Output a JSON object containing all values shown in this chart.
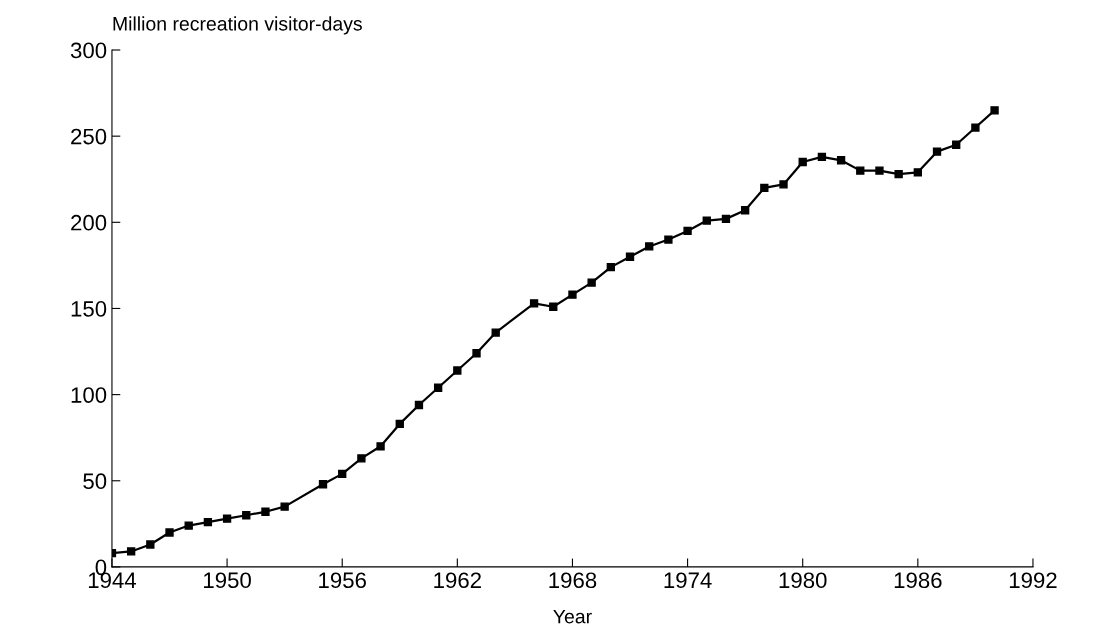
{
  "chart_data": {
    "type": "line",
    "ylabel": "Million recreation visitor-days",
    "xlabel": "Year",
    "x": [
      1944,
      1945,
      1946,
      1947,
      1948,
      1949,
      1950,
      1951,
      1952,
      1953,
      1955,
      1956,
      1957,
      1958,
      1959,
      1960,
      1961,
      1962,
      1963,
      1964,
      1966,
      1967,
      1968,
      1969,
      1970,
      1971,
      1972,
      1973,
      1974,
      1975,
      1976,
      1977,
      1978,
      1979,
      1980,
      1981,
      1982,
      1983,
      1984,
      1985,
      1986,
      1987,
      1988,
      1989,
      1990
    ],
    "series": [
      {
        "color": "#000000",
        "values": [
          8,
          9,
          13,
          20,
          24,
          26,
          28,
          30,
          32,
          35,
          48,
          54,
          63,
          70,
          83,
          94,
          104,
          114,
          124,
          136,
          153,
          151,
          158,
          165,
          174,
          180,
          186,
          190,
          195,
          201,
          202,
          207,
          220,
          222,
          235,
          238,
          236,
          230,
          230,
          228,
          229,
          241,
          245,
          255,
          265
        ]
      }
    ],
    "xlim": [
      1944,
      1992
    ],
    "xticks": [
      1944,
      1950,
      1956,
      1962,
      1968,
      1974,
      1980,
      1986,
      1992
    ],
    "ylim": [
      0,
      300
    ],
    "yticks": [
      0,
      50,
      100,
      150,
      200,
      250,
      300
    ],
    "marker": "square",
    "line_style": "solid",
    "grid": false,
    "legend": false
  }
}
